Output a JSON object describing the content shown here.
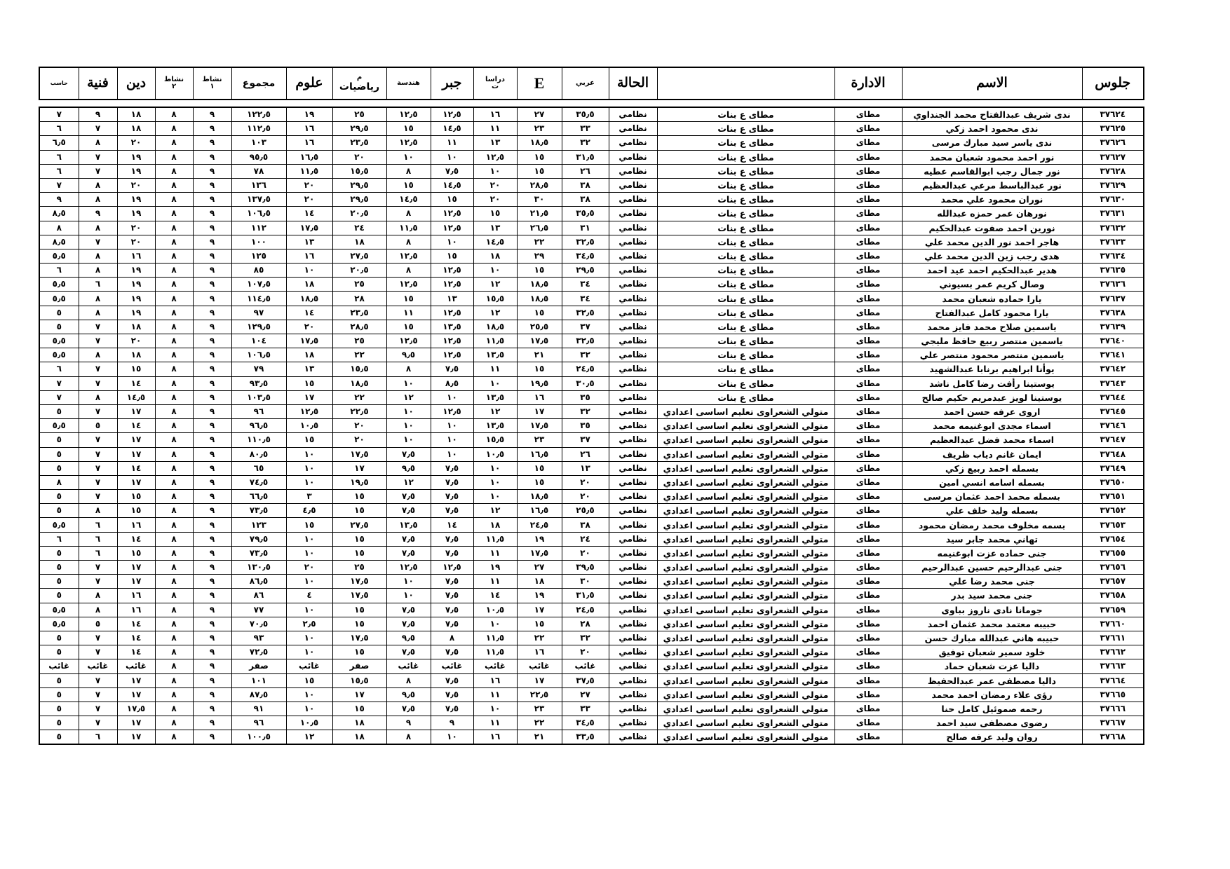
{
  "headers": {
    "seat": "جلوس",
    "name": "الاسم",
    "admin": "الادارة",
    "school": "",
    "status": "الحالة",
    "arabic": "عربي",
    "english": "E",
    "social_1": "دراسا",
    "social_2": "ت",
    "algebra": "جبر",
    "geometry": "هندسة",
    "math_1": "م",
    "math_2": "رياضيات",
    "science": "علوم",
    "total": "مجموع",
    "act1_1": "نشاط",
    "act1_2": "١",
    "act2_1": "نشاط",
    "act2_2": "٢",
    "religion": "دين",
    "art": "فنية",
    "computer": "حاسب"
  },
  "rows": [
    [
      "٣٧٦٢٤",
      "ندى شريف عبدالفتاح محمد الجنداوي",
      "مطاى",
      "مطاى ع بنات",
      "نظامي",
      "٣٥٫٥",
      "٢٧",
      "١٦",
      "١٢٫٥",
      "١٢٫٥",
      "٢٥",
      "١٩",
      "١٢٢٫٥",
      "٩",
      "٨",
      "١٨",
      "٩",
      "٧"
    ],
    [
      "٣٧٦٢٥",
      "ندى محمود احمد زكي",
      "مطاى",
      "مطاى ع بنات",
      "نظامي",
      "٣٣",
      "٢٣",
      "١١",
      "١٤٫٥",
      "١٥",
      "٢٩٫٥",
      "١٦",
      "١١٢٫٥",
      "٩",
      "٨",
      "١٨",
      "٧",
      "٦"
    ],
    [
      "٣٧٦٢٦",
      "ندى ياسر سيد مبارك مرسى",
      "مطاى",
      "مطاى ع بنات",
      "نظامي",
      "٣٢",
      "١٨٫٥",
      "١٣",
      "١١",
      "١٢٫٥",
      "٢٣٫٥",
      "١٦",
      "١٠٣",
      "٩",
      "٨",
      "٢٠",
      "٨",
      "٦٫٥"
    ],
    [
      "٣٧٦٢٧",
      "نور احمد محمود شعبان محمد",
      "مطاى",
      "مطاى ع بنات",
      "نظامي",
      "٣١٫٥",
      "١٥",
      "١٢٫٥",
      "١٠",
      "١٠",
      "٢٠",
      "١٦٫٥",
      "٩٥٫٥",
      "٩",
      "٨",
      "١٩",
      "٧",
      "٦"
    ],
    [
      "٣٧٦٢٨",
      "نور جمال رجب ابوالقاسم عطيه",
      "مطاى",
      "مطاى ع بنات",
      "نظامي",
      "٢٦",
      "١٥",
      "١٠",
      "٧٫٥",
      "٨",
      "١٥٫٥",
      "١١٫٥",
      "٧٨",
      "٩",
      "٨",
      "١٩",
      "٧",
      "٦"
    ],
    [
      "٣٧٦٢٩",
      "نور عبدالباسط مرعي عبدالعظيم",
      "مطاى",
      "مطاى ع بنات",
      "نظامي",
      "٣٨",
      "٢٨٫٥",
      "٢٠",
      "١٤٫٥",
      "١٥",
      "٢٩٫٥",
      "٢٠",
      "١٣٦",
      "٩",
      "٨",
      "٢٠",
      "٨",
      "٧"
    ],
    [
      "٣٧٦٣٠",
      "نوران محمود علي محمد",
      "مطاى",
      "مطاى ع بنات",
      "نظامي",
      "٣٨",
      "٣٠",
      "٢٠",
      "١٥",
      "١٤٫٥",
      "٢٩٫٥",
      "٢٠",
      "١٣٧٫٥",
      "٩",
      "٨",
      "١٩",
      "٨",
      "٩"
    ],
    [
      "٣٧٦٣١",
      "نورهان عمر حمزه عبدالله",
      "مطاى",
      "مطاى ع بنات",
      "نظامي",
      "٣٥٫٥",
      "٢١٫٥",
      "١٥",
      "١٢٫٥",
      "٨",
      "٢٠٫٥",
      "١٤",
      "١٠٦٫٥",
      "٩",
      "٨",
      "١٩",
      "٩",
      "٨٫٥"
    ],
    [
      "٣٧٦٣٢",
      "نورين احمد صفوت عبدالحكيم",
      "مطاى",
      "مطاى ع بنات",
      "نظامي",
      "٣١",
      "٢٦٫٥",
      "١٣",
      "١٢٫٥",
      "١١٫٥",
      "٢٤",
      "١٧٫٥",
      "١١٢",
      "٩",
      "٨",
      "٢٠",
      "٨",
      "٨"
    ],
    [
      "٣٧٦٣٣",
      "هاجر احمد نور الدين محمد علي",
      "مطاى",
      "مطاى ع بنات",
      "نظامي",
      "٣٢٫٥",
      "٢٢",
      "١٤٫٥",
      "١٠",
      "٨",
      "١٨",
      "١٣",
      "١٠٠",
      "٩",
      "٨",
      "٢٠",
      "٧",
      "٨٫٥"
    ],
    [
      "٣٧٦٣٤",
      "هدى رجب زين الدين محمد علي",
      "مطاى",
      "مطاى ع بنات",
      "نظامي",
      "٣٤٫٥",
      "٢٩",
      "١٨",
      "١٥",
      "١٢٫٥",
      "٢٧٫٥",
      "١٦",
      "١٢٥",
      "٩",
      "٨",
      "١٦",
      "٨",
      "٥٫٥"
    ],
    [
      "٣٧٦٣٥",
      "هدير عبدالحكيم احمد عيد احمد",
      "مطاى",
      "مطاى ع بنات",
      "نظامي",
      "٢٩٫٥",
      "١٥",
      "١٠",
      "١٢٫٥",
      "٨",
      "٢٠٫٥",
      "١٠",
      "٨٥",
      "٩",
      "٨",
      "١٩",
      "٨",
      "٦"
    ],
    [
      "٣٧٦٣٦",
      "وصال كريم عمر بسيوني",
      "مطاى",
      "مطاى ع بنات",
      "نظامي",
      "٣٤",
      "١٨٫٥",
      "١٢",
      "١٢٫٥",
      "١٢٫٥",
      "٢٥",
      "١٨",
      "١٠٧٫٥",
      "٩",
      "٨",
      "١٩",
      "٦",
      "٥٫٥"
    ],
    [
      "٣٧٦٣٧",
      "يارا حماده شعبان محمد",
      "مطاى",
      "مطاى ع بنات",
      "نظامي",
      "٣٤",
      "١٨٫٥",
      "١٥٫٥",
      "١٣",
      "١٥",
      "٢٨",
      "١٨٫٥",
      "١١٤٫٥",
      "٩",
      "٨",
      "١٩",
      "٨",
      "٥٫٥"
    ],
    [
      "٣٧٦٣٨",
      "يارا محمود كامل عبدالفتاح",
      "مطاى",
      "مطاى ع بنات",
      "نظامي",
      "٣٢٫٥",
      "١٥",
      "١٢",
      "١٢٫٥",
      "١١",
      "٢٣٫٥",
      "١٤",
      "٩٧",
      "٩",
      "٨",
      "١٩",
      "٨",
      "٥"
    ],
    [
      "٣٧٦٣٩",
      "ياسمين صلاح محمد فايز محمد",
      "مطاى",
      "مطاى ع بنات",
      "نظامي",
      "٣٧",
      "٢٥٫٥",
      "١٨٫٥",
      "١٣٫٥",
      "١٥",
      "٢٨٫٥",
      "٢٠",
      "١٢٩٫٥",
      "٩",
      "٨",
      "١٨",
      "٧",
      "٥"
    ],
    [
      "٣٧٦٤٠",
      "ياسمين منتصر ربيع حافظ مليجي",
      "مطاى",
      "مطاى ع بنات",
      "نظامي",
      "٣٢٫٥",
      "١٧٫٥",
      "١١٫٥",
      "١٢٫٥",
      "١٢٫٥",
      "٢٥",
      "١٧٫٥",
      "١٠٤",
      "٩",
      "٨",
      "٢٠",
      "٧",
      "٥٫٥"
    ],
    [
      "٣٧٦٤١",
      "ياسمين منتصر محمود منتصر علي",
      "مطاى",
      "مطاى ع بنات",
      "نظامي",
      "٣٢",
      "٢١",
      "١٣٫٥",
      "١٢٫٥",
      "٩٫٥",
      "٢٢",
      "١٨",
      "١٠٦٫٥",
      "٩",
      "٨",
      "١٨",
      "٨",
      "٥٫٥"
    ],
    [
      "٣٧٦٤٢",
      "يوأنا ابراهيم برنابا عبدالشهيد",
      "مطاى",
      "مطاى ع بنات",
      "نظامي",
      "٢٤٫٥",
      "١٥",
      "١١",
      "٧٫٥",
      "٨",
      "١٥٫٥",
      "١٣",
      "٧٩",
      "٩",
      "٨",
      "١٥",
      "٧",
      "٦"
    ],
    [
      "٣٧٦٤٣",
      "يوستينا رأفت رضا كامل ناشد",
      "مطاى",
      "مطاى ع بنات",
      "نظامي",
      "٣٠٫٥",
      "١٩٫٥",
      "١٠",
      "٨٫٥",
      "١٠",
      "١٨٫٥",
      "١٥",
      "٩٣٫٥",
      "٩",
      "٨",
      "١٤",
      "٧",
      "٧"
    ],
    [
      "٣٧٦٤٤",
      "يوستينا لويز عبدمريم حكيم صالح",
      "مطاى",
      "مطاى ع بنات",
      "نظامي",
      "٣٥",
      "١٦",
      "١٣٫٥",
      "١٠",
      "١٢",
      "٢٢",
      "١٧",
      "١٠٣٫٥",
      "٩",
      "٨",
      "١٤٫٥",
      "٨",
      "٧"
    ],
    [
      "٣٧٦٤٥",
      "اروى عرفه حسن احمد",
      "مطاى",
      "متولي الشعراوى تعليم اساسى اعدادي",
      "نظامي",
      "٣٢",
      "١٧",
      "١٢",
      "١٢٫٥",
      "١٠",
      "٢٢٫٥",
      "١٢٫٥",
      "٩٦",
      "٩",
      "٨",
      "١٧",
      "٧",
      "٥"
    ],
    [
      "٣٧٦٤٦",
      "اسماء مجدى ابوغنيمه محمد",
      "مطاى",
      "متولي الشعراوى تعليم اساسى اعدادي",
      "نظامي",
      "٣٥",
      "١٧٫٥",
      "١٣٫٥",
      "١٠",
      "١٠",
      "٢٠",
      "١٠٫٥",
      "٩٦٫٥",
      "٩",
      "٨",
      "١٤",
      "٥",
      "٥٫٥"
    ],
    [
      "٣٧٦٤٧",
      "اسماء محمد فضل عبدالعظيم",
      "مطاى",
      "متولي الشعراوى تعليم اساسى اعدادي",
      "نظامي",
      "٣٧",
      "٢٣",
      "١٥٫٥",
      "١٠",
      "١٠",
      "٢٠",
      "١٥",
      "١١٠٫٥",
      "٩",
      "٨",
      "١٧",
      "٧",
      "٥"
    ],
    [
      "٣٧٦٤٨",
      "ايمان غانم دياب ظريف",
      "مطاى",
      "متولي الشعراوى تعليم اساسى اعدادي",
      "نظامي",
      "٢٦",
      "١٦٫٥",
      "١٠٫٥",
      "١٠",
      "٧٫٥",
      "١٧٫٥",
      "١٠",
      "٨٠٫٥",
      "٩",
      "٨",
      "١٧",
      "٧",
      "٥"
    ],
    [
      "٣٧٦٤٩",
      "بسمله احمد ربيع زكي",
      "مطاى",
      "متولي الشعراوى تعليم اساسى اعدادي",
      "نظامي",
      "١٣",
      "١٥",
      "١٠",
      "٧٫٥",
      "٩٫٥",
      "١٧",
      "١٠",
      "٦٥",
      "٩",
      "٨",
      "١٤",
      "٧",
      "٥"
    ],
    [
      "٣٧٦٥٠",
      "بسمله اسامه انسي امين",
      "مطاى",
      "متولي الشعراوى تعليم اساسى اعدادي",
      "نظامي",
      "٢٠",
      "١٥",
      "١٠",
      "٧٫٥",
      "١٢",
      "١٩٫٥",
      "١٠",
      "٧٤٫٥",
      "٩",
      "٨",
      "١٧",
      "٧",
      "٨"
    ],
    [
      "٣٧٦٥١",
      "بسمله محمد احمد عثمان مرسى",
      "مطاى",
      "متولي الشعراوى تعليم اساسى اعدادي",
      "نظامي",
      "٢٠",
      "١٨٫٥",
      "١٠",
      "٧٫٥",
      "٧٫٥",
      "١٥",
      "٣",
      "٦٦٫٥",
      "٩",
      "٨",
      "١٥",
      "٧",
      "٥"
    ],
    [
      "٣٧٦٥٢",
      "بسمله وليد خلف علي",
      "مطاى",
      "متولي الشعراوى تعليم اساسى اعدادي",
      "نظامي",
      "٢٥٫٥",
      "١٦٫٥",
      "١٢",
      "٧٫٥",
      "٧٫٥",
      "١٥",
      "٤٫٥",
      "٧٣٫٥",
      "٩",
      "٨",
      "١٥",
      "٨",
      "٥"
    ],
    [
      "٣٧٦٥٣",
      "بسمه مخلوف محمد رمضان محمود",
      "مطاى",
      "متولي الشعراوى تعليم اساسى اعدادي",
      "نظامي",
      "٣٨",
      "٢٤٫٥",
      "١٨",
      "١٤",
      "١٣٫٥",
      "٢٧٫٥",
      "١٥",
      "١٢٣",
      "٩",
      "٨",
      "١٦",
      "٦",
      "٥٫٥"
    ],
    [
      "٣٧٦٥٤",
      "تهاني محمد جابر سيد",
      "مطاى",
      "متولي الشعراوى تعليم اساسى اعدادي",
      "نظامي",
      "٢٤",
      "١٩",
      "١١٫٥",
      "٧٫٥",
      "٧٫٥",
      "١٥",
      "١٠",
      "٧٩٫٥",
      "٩",
      "٨",
      "١٤",
      "٦",
      "٦"
    ],
    [
      "٣٧٦٥٥",
      "جنى حماده عزت ابوغنيمه",
      "مطاى",
      "متولي الشعراوى تعليم اساسى اعدادي",
      "نظامي",
      "٢٠",
      "١٧٫٥",
      "١١",
      "٧٫٥",
      "٧٫٥",
      "١٥",
      "١٠",
      "٧٣٫٥",
      "٩",
      "٨",
      "١٥",
      "٦",
      "٥"
    ],
    [
      "٣٧٦٥٦",
      "جنى عبدالرحيم حسين عبدالرحيم",
      "مطاى",
      "متولي الشعراوى تعليم اساسى اعدادي",
      "نظامي",
      "٣٩٫٥",
      "٢٧",
      "١٩",
      "١٢٫٥",
      "١٢٫٥",
      "٢٥",
      "٢٠",
      "١٣٠٫٥",
      "٩",
      "٨",
      "١٧",
      "٧",
      "٥"
    ],
    [
      "٣٧٦٥٧",
      "جنى محمد رضا علي",
      "مطاى",
      "متولي الشعراوى تعليم اساسى اعدادي",
      "نظامي",
      "٣٠",
      "١٨",
      "١١",
      "٧٫٥",
      "١٠",
      "١٧٫٥",
      "١٠",
      "٨٦٫٥",
      "٩",
      "٨",
      "١٧",
      "٧",
      "٥"
    ],
    [
      "٣٧٦٥٨",
      "جنى محمد سيد بدر",
      "مطاى",
      "متولي الشعراوى تعليم اساسى اعدادي",
      "نظامي",
      "٣١٫٥",
      "١٩",
      "١٤",
      "٧٫٥",
      "١٠",
      "١٧٫٥",
      "٤",
      "٨٦",
      "٩",
      "٨",
      "١٦",
      "٨",
      "٥"
    ],
    [
      "٣٧٦٥٩",
      "جومانا نادى ناروز بباوى",
      "مطاى",
      "متولي الشعراوى تعليم اساسى اعدادي",
      "نظامي",
      "٢٤٫٥",
      "١٧",
      "١٠٫٥",
      "٧٫٥",
      "٧٫٥",
      "١٥",
      "١٠",
      "٧٧",
      "٩",
      "٨",
      "١٦",
      "٨",
      "٥٫٥"
    ],
    [
      "٣٧٦٦٠",
      "حبيبه معتمد محمد عثمان احمد",
      "مطاى",
      "متولي الشعراوى تعليم اساسى اعدادي",
      "نظامي",
      "٢٨",
      "١٥",
      "١٠",
      "٧٫٥",
      "٧٫٥",
      "١٥",
      "٢٫٥",
      "٧٠٫٥",
      "٩",
      "٨",
      "١٤",
      "٥",
      "٥٫٥"
    ],
    [
      "٣٧٦٦١",
      "حبيبه هاني عبدالله مبارك حسن",
      "مطاى",
      "متولي الشعراوى تعليم اساسى اعدادي",
      "نظامي",
      "٣٢",
      "٢٢",
      "١١٫٥",
      "٨",
      "٩٫٥",
      "١٧٫٥",
      "١٠",
      "٩٣",
      "٩",
      "٨",
      "١٤",
      "٧",
      "٥"
    ],
    [
      "٣٧٦٦٢",
      "خلود سمير شعبان توفيق",
      "مطاى",
      "متولي الشعراوى تعليم اساسى اعدادي",
      "نظامي",
      "٢٠",
      "١٦",
      "١١٫٥",
      "٧٫٥",
      "٧٫٥",
      "١٥",
      "١٠",
      "٧٢٫٥",
      "٩",
      "٨",
      "١٤",
      "٧",
      "٥"
    ],
    [
      "٣٧٦٦٣",
      "داليا عزت شعبان حماد",
      "مطاى",
      "متولي الشعراوى تعليم اساسى اعدادي",
      "نظامي",
      "غائب",
      "غائب",
      "غائب",
      "غائب",
      "غائب",
      "صفر",
      "غائب",
      "صفر",
      "٩",
      "٨",
      "غائب",
      "غائب",
      "غائب"
    ],
    [
      "٣٧٦٦٤",
      "داليا مصطفى عمر عبدالحفيظ",
      "مطاى",
      "متولي الشعراوى تعليم اساسى اعدادي",
      "نظامي",
      "٣٧٫٥",
      "١٧",
      "١٦",
      "٧٫٥",
      "٨",
      "١٥٫٥",
      "١٥",
      "١٠١",
      "٩",
      "٨",
      "١٧",
      "٧",
      "٥"
    ],
    [
      "٣٧٦٦٥",
      "رؤى علاء رمضان احمد محمد",
      "مطاى",
      "متولي الشعراوى تعليم اساسى اعدادي",
      "نظامي",
      "٢٧",
      "٢٢٫٥",
      "١١",
      "٧٫٥",
      "٩٫٥",
      "١٧",
      "١٠",
      "٨٧٫٥",
      "٩",
      "٨",
      "١٧",
      "٧",
      "٥"
    ],
    [
      "٣٧٦٦٦",
      "رحمه صموئيل كامل حنا",
      "مطاى",
      "متولي الشعراوى تعليم اساسى اعدادي",
      "نظامي",
      "٣٣",
      "٢٣",
      "١٠",
      "٧٫٥",
      "٧٫٥",
      "١٥",
      "١٠",
      "٩١",
      "٩",
      "٨",
      "١٧٫٥",
      "٧",
      "٥"
    ],
    [
      "٣٧٦٦٧",
      "رضوى مصطفى سيد احمد",
      "مطاى",
      "متولي الشعراوى تعليم اساسى اعدادي",
      "نظامي",
      "٣٤٫٥",
      "٢٢",
      "١١",
      "٩",
      "٩",
      "١٨",
      "١٠٫٥",
      "٩٦",
      "٩",
      "٨",
      "١٧",
      "٧",
      "٥"
    ],
    [
      "٣٧٦٦٨",
      "روان وليد عرفه صالح",
      "مطاى",
      "متولي الشعراوى تعليم اساسى اعدادي",
      "نظامي",
      "٣٣٫٥",
      "٢١",
      "١٦",
      "١٠",
      "٨",
      "١٨",
      "١٢",
      "١٠٠٫٥",
      "٩",
      "٨",
      "١٧",
      "٦",
      "٥"
    ]
  ]
}
